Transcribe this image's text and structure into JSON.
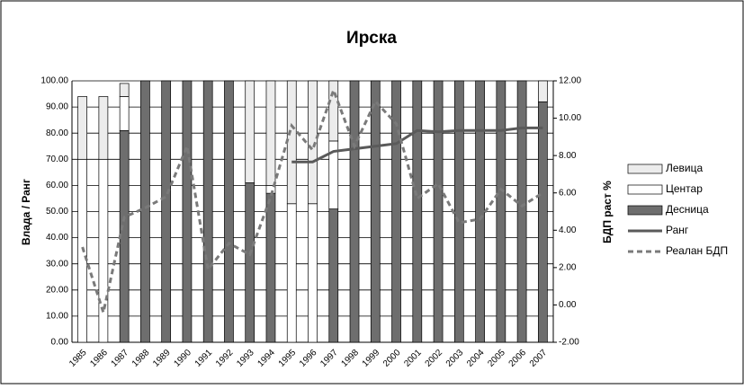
{
  "chart_data": {
    "type": "bar",
    "title": "Ирска",
    "y_label": "Влада / Ранг",
    "y2_label": "БДП раст %",
    "categories": [
      "1985",
      "1986",
      "1987",
      "1988",
      "1989",
      "1990",
      "1991",
      "1992",
      "1993",
      "1994",
      "1995",
      "1996",
      "1997",
      "1998",
      "1999",
      "2000",
      "2001",
      "2002",
      "2003",
      "2004",
      "2005",
      "2006",
      "2007"
    ],
    "series": [
      {
        "name": "Левица",
        "type": "bar",
        "color": "#ececec",
        "values": [
          24,
          24,
          5,
          0,
          0,
          0,
          0,
          0,
          39,
          40,
          47,
          47,
          23,
          0,
          0,
          0,
          0,
          0,
          0,
          0,
          0,
          0,
          8
        ]
      },
      {
        "name": "Центар",
        "type": "bar",
        "color": "#ffffff",
        "values": [
          70,
          70,
          13,
          0,
          0,
          0,
          0,
          0,
          0,
          3,
          53,
          53,
          26,
          0,
          0,
          0,
          0,
          0,
          0,
          0,
          0,
          0,
          0
        ]
      },
      {
        "name": "Десница",
        "type": "bar",
        "color": "#6e6e6e",
        "values": [
          0,
          0,
          81,
          100,
          100,
          100,
          100,
          100,
          61,
          57,
          0,
          0,
          51,
          100,
          100,
          100,
          100,
          100,
          100,
          100,
          100,
          100,
          92
        ]
      },
      {
        "name": "Ранг",
        "type": "line",
        "color": "#5a5a5a",
        "values": [
          null,
          null,
          null,
          null,
          null,
          null,
          null,
          null,
          null,
          null,
          69,
          69,
          73,
          74,
          75,
          76,
          81,
          80.5,
          81,
          81,
          81,
          82,
          82
        ]
      },
      {
        "name": "Реалан БДП",
        "type": "line",
        "dashed": true,
        "axis": "y2",
        "color": "#7a7a7a",
        "values": [
          3.1,
          -0.4,
          4.7,
          5.2,
          5.8,
          8.5,
          1.9,
          3.3,
          2.7,
          5.8,
          9.6,
          8.3,
          11.5,
          8.5,
          10.9,
          9.7,
          5.7,
          6.5,
          4.4,
          4.6,
          6.2,
          5.3,
          6.0
        ]
      }
    ],
    "ylim": [
      0,
      100
    ],
    "yticks": [
      {
        "value": 0,
        "label": "0.00"
      },
      {
        "value": 10,
        "label": "10.00"
      },
      {
        "value": 20,
        "label": "20.00"
      },
      {
        "value": 30,
        "label": "30.00"
      },
      {
        "value": 40,
        "label": "40.00"
      },
      {
        "value": 50,
        "label": "50.00"
      },
      {
        "value": 60,
        "label": "60.00"
      },
      {
        "value": 70,
        "label": "70.00"
      },
      {
        "value": 80,
        "label": "80.00"
      },
      {
        "value": 90,
        "label": "90.00"
      },
      {
        "value": 100,
        "label": "100.00"
      }
    ],
    "y2lim": [
      -2,
      12
    ],
    "y2ticks": [
      {
        "value": -2,
        "label": "-2.00"
      },
      {
        "value": 0,
        "label": "0.00"
      },
      {
        "value": 2,
        "label": "2.00"
      },
      {
        "value": 4,
        "label": "4.00"
      },
      {
        "value": 6,
        "label": "6.00"
      },
      {
        "value": 8,
        "label": "8.00"
      },
      {
        "value": 10,
        "label": "10.00"
      },
      {
        "value": 12,
        "label": "12.00"
      }
    ],
    "grid": true,
    "legend": "right"
  }
}
